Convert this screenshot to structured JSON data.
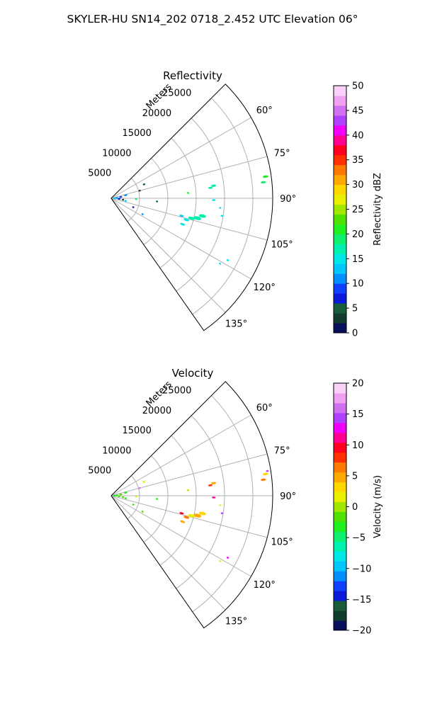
{
  "suptitle": "SKYLER-HU  SN14_202  0718_2.452 UTC Elevation 06°",
  "chart_data": [
    {
      "type": "polar-sector",
      "title": "Reflectivity",
      "radial_label": "Meters",
      "azimuth_range_deg": [
        45,
        145
      ],
      "range_max_m": 28500,
      "radial_ticks": [
        5000,
        10000,
        15000,
        20000,
        25000
      ],
      "radial_tick_labels": [
        "5000",
        "10000",
        "15000",
        "20000",
        "25000"
      ],
      "angle_gridlines_deg": [
        60,
        75,
        90,
        105,
        120,
        135
      ],
      "angle_tick_labels": [
        "60°",
        "75°",
        "90°",
        "105°",
        "120°",
        "135°"
      ],
      "grid": true,
      "colorbar": {
        "label": "Reflectivity dBZ",
        "range": [
          0,
          50
        ],
        "ticks": [
          0,
          5,
          10,
          15,
          20,
          25,
          30,
          35,
          40,
          45,
          50
        ],
        "tick_labels": [
          "0",
          "5",
          "10",
          "15",
          "20",
          "25",
          "30",
          "35",
          "40",
          "45",
          "50"
        ],
        "colors": [
          "#08105c",
          "#123d2e",
          "#1a5c3a",
          "#0a1ad8",
          "#1040ff",
          "#0090ff",
          "#00c8ff",
          "#00e8e8",
          "#00f0b0",
          "#10f070",
          "#20f020",
          "#50e000",
          "#a0e800",
          "#e8f000",
          "#ffd800",
          "#ffa800",
          "#ff7800",
          "#ff3000",
          "#ff0020",
          "#ff0090",
          "#f000f8",
          "#b040ff",
          "#d070f0",
          "#f0a0f0",
          "#f8d0f8"
        ]
      },
      "echoes": [
        {
          "az": 82,
          "r": 27500,
          "value": 20,
          "size": 500
        },
        {
          "az": 84,
          "r": 27000,
          "value": 18,
          "size": 450
        },
        {
          "az": 83,
          "r": 18200,
          "value": 17,
          "size": 450
        },
        {
          "az": 84,
          "r": 17600,
          "value": 16,
          "size": 400
        },
        {
          "az": 91,
          "r": 18100,
          "value": 15,
          "size": 350
        },
        {
          "az": 101,
          "r": 16400,
          "value": 16,
          "size": 650
        },
        {
          "az": 103,
          "r": 15600,
          "value": 17,
          "size": 700
        },
        {
          "az": 104,
          "r": 14600,
          "value": 16,
          "size": 600
        },
        {
          "az": 106,
          "r": 13800,
          "value": 14,
          "size": 500
        },
        {
          "az": 104,
          "r": 12800,
          "value": 13,
          "size": 400
        },
        {
          "az": 110,
          "r": 13400,
          "value": 14,
          "size": 450
        },
        {
          "az": 99,
          "r": 19800,
          "value": 15,
          "size": 250
        },
        {
          "az": 95,
          "r": 19300,
          "value": 14,
          "size": 200
        },
        {
          "az": 118,
          "r": 23300,
          "value": 14,
          "size": 220
        },
        {
          "az": 121,
          "r": 22400,
          "value": 15,
          "size": 200
        },
        {
          "az": 86,
          "r": 13600,
          "value": 20,
          "size": 150
        },
        {
          "az": 67,
          "r": 6300,
          "value": 4,
          "size": 220
        },
        {
          "az": 75,
          "r": 5200,
          "value": 2,
          "size": 150
        },
        {
          "az": 78,
          "r": 2600,
          "value": 10,
          "size": 300
        },
        {
          "az": 82,
          "r": 1700,
          "value": 8,
          "size": 260
        },
        {
          "az": 86,
          "r": 1000,
          "value": 11,
          "size": 220
        },
        {
          "az": 90,
          "r": 600,
          "value": 12,
          "size": 200
        },
        {
          "az": 94,
          "r": 1400,
          "value": 6,
          "size": 240
        },
        {
          "az": 97,
          "r": 2100,
          "value": 3,
          "size": 200
        },
        {
          "az": 100,
          "r": 2600,
          "value": 13,
          "size": 180
        },
        {
          "az": 92,
          "r": 4400,
          "value": 18,
          "size": 150
        },
        {
          "az": 94,
          "r": 8100,
          "value": 4,
          "size": 150
        },
        {
          "az": 112,
          "r": 4200,
          "value": 6,
          "size": 140
        },
        {
          "az": 117,
          "r": 6200,
          "value": 10,
          "size": 140
        }
      ]
    },
    {
      "type": "polar-sector",
      "title": "Velocity",
      "radial_label": "Meters",
      "azimuth_range_deg": [
        45,
        145
      ],
      "range_max_m": 28500,
      "radial_ticks": [
        5000,
        10000,
        15000,
        20000,
        25000
      ],
      "radial_tick_labels": [
        "5000",
        "10000",
        "15000",
        "20000",
        "25000"
      ],
      "angle_gridlines_deg": [
        60,
        75,
        90,
        105,
        120,
        135
      ],
      "angle_tick_labels": [
        "60°",
        "75°",
        "90°",
        "105°",
        "120°",
        "135°"
      ],
      "grid": true,
      "colorbar": {
        "label": "Velocity (m/s)",
        "range": [
          -20,
          20
        ],
        "ticks": [
          -20,
          -15,
          -10,
          -5,
          0,
          5,
          10,
          15,
          20
        ],
        "tick_labels": [
          "−20",
          "−15",
          "−10",
          "−5",
          "0",
          "5",
          "10",
          "15",
          "20"
        ],
        "colors": [
          "#08105c",
          "#123d2e",
          "#1a5c3a",
          "#0a1ad8",
          "#1040ff",
          "#0090ff",
          "#00c8ff",
          "#00e8e8",
          "#00f0b0",
          "#10f070",
          "#20f020",
          "#50e000",
          "#a0e800",
          "#e8f000",
          "#ffd800",
          "#ffa800",
          "#ff7800",
          "#ff3000",
          "#ff0020",
          "#ff0090",
          "#f000f8",
          "#b040ff",
          "#d070f0",
          "#f0a0f0",
          "#f8d0f8"
        ]
      },
      "echoes": [
        {
          "az": 82,
          "r": 27500,
          "value": 3,
          "size": 500
        },
        {
          "az": 84,
          "r": 27000,
          "value": 6,
          "size": 450
        },
        {
          "az": 81,
          "r": 27900,
          "value": 15,
          "size": 250
        },
        {
          "az": 83,
          "r": 18200,
          "value": 4,
          "size": 450
        },
        {
          "az": 84,
          "r": 17600,
          "value": 8,
          "size": 380
        },
        {
          "az": 91,
          "r": 18100,
          "value": 11,
          "size": 350
        },
        {
          "az": 101,
          "r": 16400,
          "value": 3,
          "size": 650
        },
        {
          "az": 103,
          "r": 15600,
          "value": 4,
          "size": 700
        },
        {
          "az": 104,
          "r": 14600,
          "value": 2,
          "size": 600
        },
        {
          "az": 106,
          "r": 13800,
          "value": 6,
          "size": 500
        },
        {
          "az": 104,
          "r": 12800,
          "value": 9,
          "size": 400
        },
        {
          "az": 110,
          "r": 13400,
          "value": 5,
          "size": 450
        },
        {
          "az": 99,
          "r": 19800,
          "value": 14,
          "size": 220
        },
        {
          "az": 95,
          "r": 19300,
          "value": 2,
          "size": 200
        },
        {
          "az": 118,
          "r": 23300,
          "value": 12,
          "size": 200
        },
        {
          "az": 121,
          "r": 22400,
          "value": 1,
          "size": 200
        },
        {
          "az": 86,
          "r": 13600,
          "value": 0,
          "size": 150
        },
        {
          "az": 67,
          "r": 6300,
          "value": 1,
          "size": 220
        },
        {
          "az": 75,
          "r": 5200,
          "value": 16,
          "size": 150
        },
        {
          "az": 78,
          "r": 2600,
          "value": -3,
          "size": 300
        },
        {
          "az": 82,
          "r": 1700,
          "value": -2,
          "size": 260
        },
        {
          "az": 86,
          "r": 1000,
          "value": -4,
          "size": 220
        },
        {
          "az": 90,
          "r": 600,
          "value": -3,
          "size": 200
        },
        {
          "az": 94,
          "r": 1400,
          "value": -2,
          "size": 240
        },
        {
          "az": 97,
          "r": 2100,
          "value": -1,
          "size": 200
        },
        {
          "az": 100,
          "r": 2600,
          "value": -3,
          "size": 180
        },
        {
          "az": 92,
          "r": 4400,
          "value": 1,
          "size": 150
        },
        {
          "az": 94,
          "r": 8100,
          "value": -3,
          "size": 150
        },
        {
          "az": 112,
          "r": 4200,
          "value": -2,
          "size": 140
        },
        {
          "az": 117,
          "r": 6200,
          "value": -1,
          "size": 140
        }
      ]
    }
  ]
}
